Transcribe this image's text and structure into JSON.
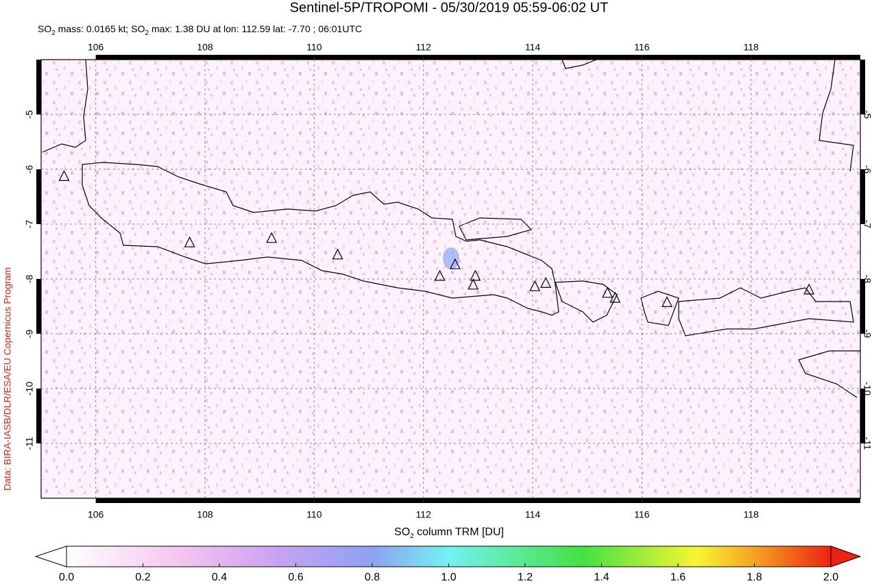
{
  "chart_data": {
    "type": "map",
    "title": "Sentinel-5P/TROPOMI - 05/30/2019 05:59-06:02 UT",
    "subtitle": [
      "SO",
      "2",
      " mass: 0.0165 kt; SO",
      "2",
      " max: 1.38 DU at lon: 112.59 lat: -7.70 ; 06:01UTC"
    ],
    "side_label": "Data: BIRA-IASB/DLR/ESA/EU Copernicus Program",
    "xlim": [
      105,
      120
    ],
    "ylim": [
      -12,
      -4
    ],
    "xticks": [
      106,
      108,
      110,
      112,
      114,
      116,
      118
    ],
    "yticks": [
      -5,
      -6,
      -7,
      -8,
      -9,
      -10,
      -11
    ],
    "grid": true,
    "volcanoes": {
      "lon": [
        105.42,
        107.72,
        109.22,
        110.43,
        112.3,
        112.58,
        112.95,
        112.91,
        114.04,
        114.24,
        115.37,
        115.51,
        116.46,
        119.06
      ],
      "lat": [
        -6.13,
        -7.34,
        -7.26,
        -7.56,
        -7.95,
        -7.74,
        -7.95,
        -8.11,
        -8.14,
        -8.08,
        -8.26,
        -8.35,
        -8.43,
        -8.2
      ]
    },
    "colorbar": {
      "label": [
        "SO",
        "2",
        " column TRM [DU]"
      ],
      "lim": [
        0,
        2
      ],
      "ticks": [
        {
          "value": 0,
          "label": "0.0"
        },
        {
          "value": 0.2,
          "label": "0.2"
        },
        {
          "value": 0.4,
          "label": "0.4"
        },
        {
          "value": 0.6,
          "label": "0.6"
        },
        {
          "value": 0.8,
          "label": "0.8"
        },
        {
          "value": 1,
          "label": "1.0"
        },
        {
          "value": 1.2,
          "label": "1.2"
        },
        {
          "value": 1.4,
          "label": "1.4"
        },
        {
          "value": 1.6,
          "label": "1.6"
        },
        {
          "value": 1.8,
          "label": "1.8"
        },
        {
          "value": 2,
          "label": "2.0"
        }
      ],
      "colors": [
        [
          0,
          "#ffffff"
        ],
        [
          0.3,
          "#f5c4ef"
        ],
        [
          0.55,
          "#c9a2f2"
        ],
        [
          0.8,
          "#8ea2f2"
        ],
        [
          1,
          "#72f2f2"
        ],
        [
          1.35,
          "#42e242"
        ],
        [
          1.65,
          "#f6f632"
        ],
        [
          1.8,
          "#f6a222"
        ],
        [
          2,
          "#ee2210"
        ]
      ]
    }
  }
}
